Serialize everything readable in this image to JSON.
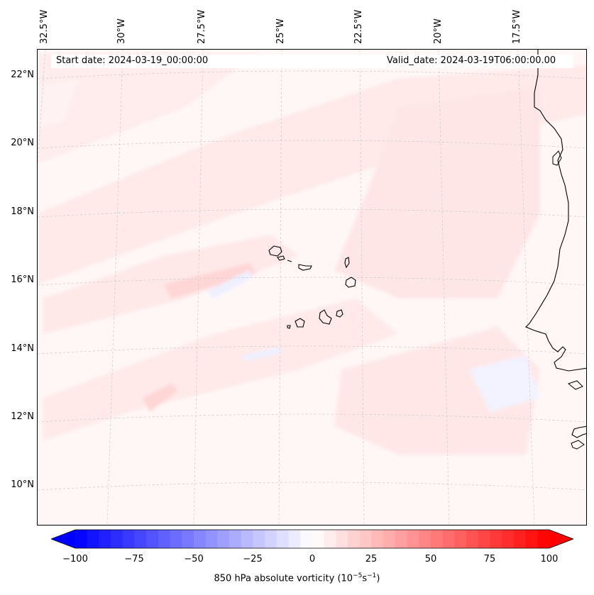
{
  "header": {
    "start_date": "Start date: 2024-03-19_00:00:00",
    "valid_date": "Valid_date: 2024-03-19T06:00:00.00"
  },
  "longitude_labels": [
    "32.5°W",
    "30°W",
    "27.5°W",
    "25°W",
    "22.5°W",
    "20°W",
    "17.5°W"
  ],
  "latitude_labels": [
    "22°N",
    "20°N",
    "18°N",
    "16°N",
    "14°N",
    "12°N",
    "10°N"
  ],
  "colorbar": {
    "ticks": [
      "−100",
      "−75",
      "−50",
      "−25",
      "0",
      "25",
      "50",
      "75",
      "100"
    ],
    "label": "850 hPa absolute vorticity (10",
    "label_exp1": "−5",
    "label_mid": "s",
    "label_exp2": "−1",
    "label_end": ")",
    "min": -100,
    "max": 100,
    "colormap": "bwr",
    "extend": "both"
  },
  "colors": {
    "background_field": "#fff7f6",
    "positive_light": "#ffe9e9",
    "positive_medium": "#ffd9d9",
    "negative_light": "#eef0ff",
    "coastline": "#000000",
    "gridline": "#c8c8c8"
  }
}
